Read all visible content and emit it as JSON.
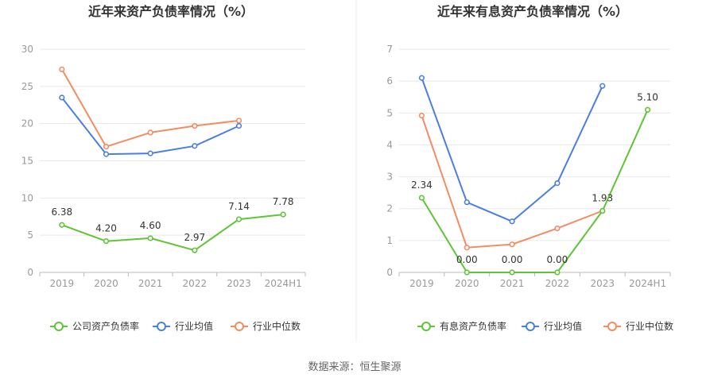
{
  "source_text": "数据来源：恒生聚源",
  "chart_data": [
    {
      "type": "line",
      "title": "近年来资产负债率情况（%）",
      "categories": [
        "2019",
        "2020",
        "2021",
        "2022",
        "2023",
        "2024H1"
      ],
      "ylim": [
        0,
        30
      ],
      "yticks": [
        0,
        5,
        10,
        15,
        20,
        25,
        30
      ],
      "grid": true,
      "legend_position": "bottom",
      "series": [
        {
          "name": "公司资产负债率",
          "color": "#5ec536",
          "values": [
            6.38,
            4.2,
            4.6,
            2.97,
            7.14,
            7.78
          ],
          "labels": [
            "6.38",
            "4.20",
            "4.60",
            "2.97",
            "7.14",
            "7.78"
          ]
        },
        {
          "name": "行业均值",
          "color": "#4a7fe0",
          "values": [
            23.5,
            15.9,
            16.0,
            17.0,
            19.7,
            null
          ]
        },
        {
          "name": "行业中位数",
          "color": "#f58b5e",
          "values": [
            27.3,
            16.9,
            18.8,
            19.7,
            20.4,
            null
          ]
        }
      ]
    },
    {
      "type": "line",
      "title": "近年来有息资产负债率情况（%）",
      "categories": [
        "2019",
        "2020",
        "2021",
        "2022",
        "2023",
        "2024H1"
      ],
      "ylim": [
        0,
        7
      ],
      "yticks": [
        0,
        1,
        2,
        3,
        4,
        5,
        6,
        7
      ],
      "grid": true,
      "legend_position": "bottom",
      "series": [
        {
          "name": "有息资产负债率",
          "color": "#5ec536",
          "values": [
            2.34,
            0.0,
            0.0,
            0.0,
            1.93,
            5.1
          ],
          "labels": [
            "2.34",
            "0.00",
            "0.00",
            "0.00",
            "1.93",
            "5.10"
          ]
        },
        {
          "name": "行业均值",
          "color": "#4a7fe0",
          "values": [
            6.1,
            2.2,
            1.6,
            2.8,
            5.85,
            null
          ]
        },
        {
          "name": "行业中位数",
          "color": "#f58b5e",
          "values": [
            4.92,
            0.78,
            0.88,
            1.38,
            1.93,
            null
          ]
        }
      ]
    }
  ]
}
